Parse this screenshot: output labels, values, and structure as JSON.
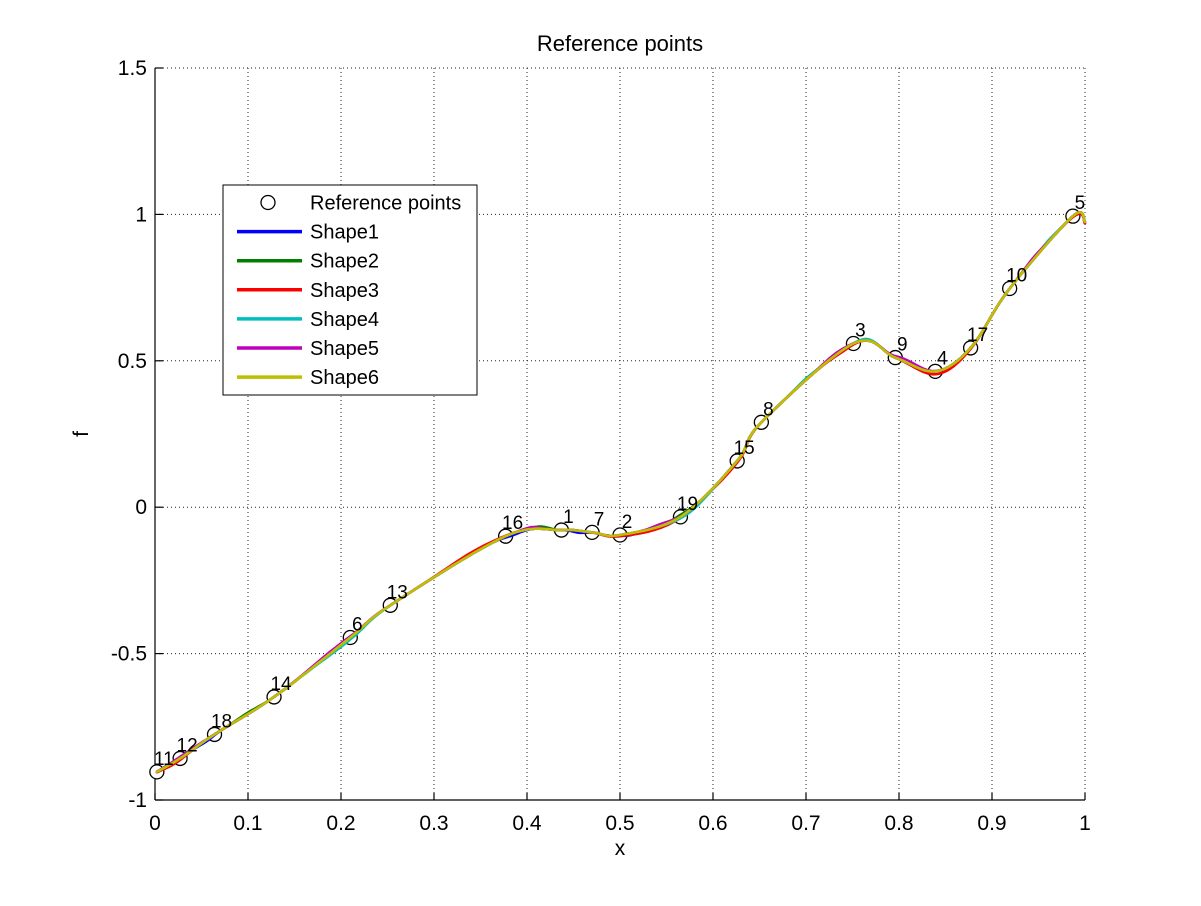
{
  "figure": {
    "title": "Reference points",
    "xlabel": "x",
    "ylabel": "f"
  },
  "chart_data": {
    "type": "line",
    "title": "Reference points",
    "xlabel": "x",
    "ylabel": "f",
    "xlim": [
      0,
      1
    ],
    "ylim": [
      -1,
      1.5
    ],
    "xticks": [
      "0",
      "0.1",
      "0.2",
      "0.3",
      "0.4",
      "0.5",
      "0.6",
      "0.7",
      "0.8",
      "0.9",
      "1"
    ],
    "yticks": [
      "-1",
      "-0.5",
      "0",
      "0.5",
      "1",
      "1.5"
    ],
    "grid": true,
    "grid_style": "dotted",
    "legend_position": "upper-left-inside",
    "legend": [
      {
        "label": "Reference points",
        "type": "marker",
        "marker": "circle",
        "color": "#000000"
      },
      {
        "label": "Shape1",
        "type": "line",
        "color": "#0000FF"
      },
      {
        "label": "Shape2",
        "type": "line",
        "color": "#007F00"
      },
      {
        "label": "Shape3",
        "type": "line",
        "color": "#FF0000"
      },
      {
        "label": "Shape4",
        "type": "line",
        "color": "#00BFBF"
      },
      {
        "label": "Shape5",
        "type": "line",
        "color": "#BF00BF"
      },
      {
        "label": "Shape6",
        "type": "line",
        "color": "#BFBF00"
      }
    ],
    "series_note": "All six Shape curves interpolate the same 19 labeled reference points and are nearly coincident; Shape6 is drawn on top.",
    "reference_points": [
      {
        "label": "1",
        "x": 0.437,
        "y": -0.078
      },
      {
        "label": "2",
        "x": 0.5,
        "y": -0.095
      },
      {
        "label": "3",
        "x": 0.751,
        "y": 0.559
      },
      {
        "label": "4",
        "x": 0.839,
        "y": 0.464
      },
      {
        "label": "5",
        "x": 0.987,
        "y": 0.994
      },
      {
        "label": "6",
        "x": 0.21,
        "y": -0.445
      },
      {
        "label": "7",
        "x": 0.47,
        "y": -0.086
      },
      {
        "label": "8",
        "x": 0.652,
        "y": 0.29
      },
      {
        "label": "9",
        "x": 0.796,
        "y": 0.511
      },
      {
        "label": "10",
        "x": 0.919,
        "y": 0.747
      },
      {
        "label": "11",
        "x": 0.002,
        "y": -0.904
      },
      {
        "label": "12",
        "x": 0.027,
        "y": -0.858
      },
      {
        "label": "13",
        "x": 0.253,
        "y": -0.335
      },
      {
        "label": "14",
        "x": 0.128,
        "y": -0.648
      },
      {
        "label": "15",
        "x": 0.626,
        "y": 0.158
      },
      {
        "label": "16",
        "x": 0.377,
        "y": -0.099
      },
      {
        "label": "17",
        "x": 0.877,
        "y": 0.544
      },
      {
        "label": "18",
        "x": 0.064,
        "y": -0.776
      },
      {
        "label": "19",
        "x": 0.565,
        "y": -0.033
      }
    ],
    "curve_end": {
      "x": 1.0,
      "y": 0.974
    }
  },
  "render_hints": {
    "sliver_note": "Pixel offsets (gaussian bumps, +down) showing where each underlying colored curve peeks out from beneath Shape6.",
    "slivers": {
      "Shape1": [
        [
          0.055,
          0.01,
          1.6
        ],
        [
          0.385,
          0.012,
          2.0
        ],
        [
          0.455,
          0.01,
          2.0
        ],
        [
          0.51,
          0.01,
          2.0
        ]
      ],
      "Shape2": [
        [
          0.1,
          0.015,
          -1.5
        ],
        [
          0.415,
          0.012,
          -2.2
        ],
        [
          0.565,
          0.012,
          -2.0
        ]
      ],
      "Shape3": [
        [
          0.02,
          0.015,
          1.8
        ],
        [
          0.34,
          0.03,
          -2.0
        ],
        [
          0.53,
          0.04,
          2.0
        ],
        [
          0.62,
          0.02,
          1.8
        ],
        [
          0.74,
          0.015,
          1.6
        ],
        [
          0.845,
          0.03,
          3.0
        ],
        [
          0.995,
          0.012,
          1.5
        ]
      ],
      "Shape4": [
        [
          0.205,
          0.03,
          2.0
        ],
        [
          0.578,
          0.02,
          2.2
        ],
        [
          0.7,
          0.012,
          -1.5
        ],
        [
          0.765,
          0.01,
          -1.5
        ],
        [
          0.96,
          0.012,
          -1.6
        ]
      ],
      "Shape5": [
        [
          0.03,
          0.02,
          -1.6
        ],
        [
          0.19,
          0.03,
          -1.8
        ],
        [
          0.405,
          0.01,
          -1.8
        ],
        [
          0.545,
          0.015,
          -2.0
        ],
        [
          0.73,
          0.015,
          -1.8
        ],
        [
          0.81,
          0.02,
          -2.4
        ],
        [
          0.945,
          0.012,
          -1.8
        ]
      ],
      "Shape6": []
    }
  }
}
